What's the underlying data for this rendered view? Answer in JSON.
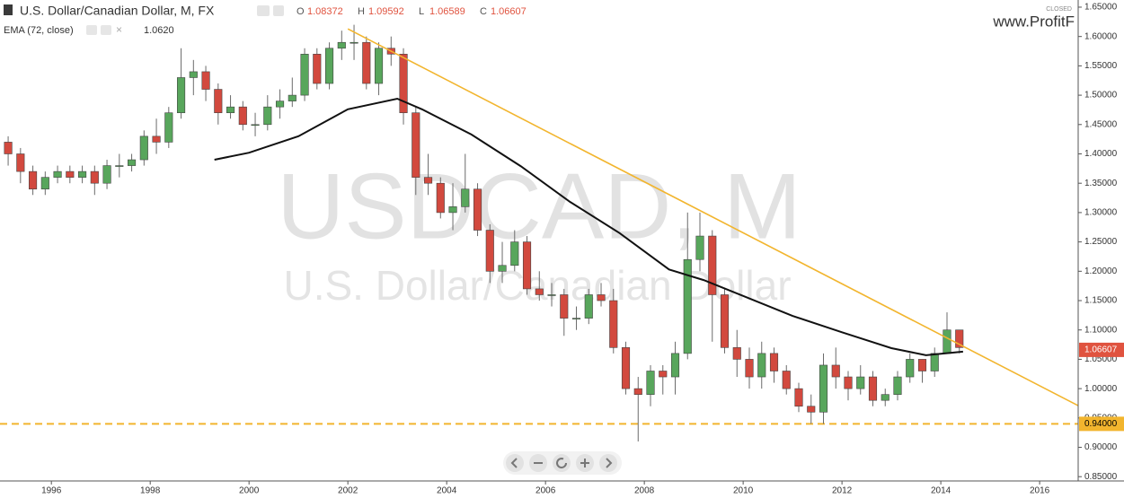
{
  "chart_data": {
    "type": "candlestick",
    "title": "U.S. Dollar/Canadian Dollar, M, FX",
    "watermark": "USDCAD, M",
    "watermark_subtitle": "U.S. Dollar/Canadian Dollar",
    "brand": "www.ProfitF",
    "status": "CLOSED",
    "ohlc_header": [
      {
        "label": "O",
        "value": 1.08372
      },
      {
        "label": "H",
        "value": 1.09592
      },
      {
        "label": "L",
        "value": 1.06589
      },
      {
        "label": "C",
        "value": 1.06607
      }
    ],
    "x": [
      1995.125,
      1995.375,
      1995.625,
      1995.875,
      1996.125,
      1996.375,
      1996.625,
      1996.875,
      1997.125,
      1997.375,
      1997.625,
      1997.875,
      1998.125,
      1998.375,
      1998.625,
      1998.875,
      1999.125,
      1999.375,
      1999.625,
      1999.875,
      2000.125,
      2000.375,
      2000.625,
      2000.875,
      2001.125,
      2001.375,
      2001.625,
      2001.875,
      2002.125,
      2002.375,
      2002.625,
      2002.875,
      2003.125,
      2003.375,
      2003.625,
      2003.875,
      2004.125,
      2004.375,
      2004.625,
      2004.875,
      2005.125,
      2005.375,
      2005.625,
      2005.875,
      2006.125,
      2006.375,
      2006.625,
      2006.875,
      2007.125,
      2007.375,
      2007.625,
      2007.875,
      2008.125,
      2008.375,
      2008.625,
      2008.875,
      2009.125,
      2009.375,
      2009.625,
      2009.875,
      2010.125,
      2010.375,
      2010.625,
      2010.875,
      2011.125,
      2011.375,
      2011.625,
      2011.875,
      2012.125,
      2012.375,
      2012.625,
      2012.875,
      2013.125,
      2013.375,
      2013.625,
      2013.875,
      2014.125,
      2014.375
    ],
    "open": [
      1.42,
      1.4,
      1.37,
      1.34,
      1.36,
      1.37,
      1.36,
      1.37,
      1.35,
      1.38,
      1.38,
      1.39,
      1.43,
      1.42,
      1.47,
      1.53,
      1.54,
      1.51,
      1.47,
      1.48,
      1.45,
      1.45,
      1.48,
      1.49,
      1.5,
      1.57,
      1.52,
      1.58,
      1.59,
      1.59,
      1.52,
      1.58,
      1.57,
      1.47,
      1.36,
      1.35,
      1.3,
      1.31,
      1.34,
      1.27,
      1.2,
      1.21,
      1.25,
      1.17,
      1.16,
      1.16,
      1.12,
      1.12,
      1.16,
      1.15,
      1.07,
      1.0,
      0.99,
      1.03,
      1.02,
      1.06,
      1.22,
      1.26,
      1.16,
      1.07,
      1.05,
      1.02,
      1.06,
      1.03,
      1.0,
      0.97,
      0.96,
      1.04,
      1.02,
      1.0,
      1.02,
      0.98,
      0.99,
      1.02,
      1.05,
      1.03,
      1.06,
      1.1
    ],
    "high": [
      1.43,
      1.41,
      1.38,
      1.37,
      1.38,
      1.38,
      1.38,
      1.38,
      1.39,
      1.4,
      1.4,
      1.44,
      1.46,
      1.48,
      1.58,
      1.56,
      1.55,
      1.52,
      1.5,
      1.49,
      1.47,
      1.5,
      1.51,
      1.53,
      1.58,
      1.58,
      1.59,
      1.61,
      1.62,
      1.6,
      1.59,
      1.6,
      1.58,
      1.48,
      1.4,
      1.36,
      1.35,
      1.4,
      1.35,
      1.28,
      1.25,
      1.27,
      1.26,
      1.2,
      1.18,
      1.17,
      1.14,
      1.17,
      1.18,
      1.17,
      1.08,
      1.02,
      1.04,
      1.04,
      1.08,
      1.3,
      1.3,
      1.27,
      1.17,
      1.1,
      1.07,
      1.08,
      1.07,
      1.04,
      1.01,
      0.99,
      1.06,
      1.07,
      1.03,
      1.04,
      1.03,
      1.0,
      1.03,
      1.06,
      1.05,
      1.07,
      1.13,
      1.1
    ],
    "low": [
      1.38,
      1.35,
      1.33,
      1.33,
      1.35,
      1.35,
      1.35,
      1.33,
      1.34,
      1.36,
      1.37,
      1.38,
      1.4,
      1.41,
      1.46,
      1.5,
      1.49,
      1.45,
      1.46,
      1.44,
      1.43,
      1.44,
      1.46,
      1.48,
      1.49,
      1.51,
      1.51,
      1.56,
      1.56,
      1.51,
      1.5,
      1.55,
      1.45,
      1.33,
      1.33,
      1.29,
      1.27,
      1.3,
      1.26,
      1.18,
      1.18,
      1.2,
      1.16,
      1.15,
      1.14,
      1.09,
      1.1,
      1.11,
      1.14,
      1.06,
      0.99,
      0.91,
      0.97,
      0.99,
      0.99,
      1.05,
      1.2,
      1.08,
      1.06,
      1.02,
      1.0,
      1.0,
      1.01,
      0.99,
      0.96,
      0.94,
      0.94,
      1.0,
      0.98,
      0.99,
      0.97,
      0.97,
      0.98,
      1.01,
      1.01,
      1.02,
      1.06,
      1.06
    ],
    "close": [
      1.4,
      1.37,
      1.34,
      1.36,
      1.37,
      1.36,
      1.37,
      1.35,
      1.38,
      1.38,
      1.39,
      1.43,
      1.42,
      1.47,
      1.53,
      1.54,
      1.51,
      1.47,
      1.48,
      1.45,
      1.45,
      1.48,
      1.49,
      1.5,
      1.57,
      1.52,
      1.58,
      1.59,
      1.59,
      1.52,
      1.58,
      1.57,
      1.47,
      1.36,
      1.35,
      1.3,
      1.31,
      1.34,
      1.27,
      1.2,
      1.21,
      1.25,
      1.17,
      1.16,
      1.16,
      1.12,
      1.12,
      1.16,
      1.15,
      1.07,
      1.0,
      0.99,
      1.03,
      1.02,
      1.06,
      1.22,
      1.26,
      1.16,
      1.07,
      1.05,
      1.02,
      1.06,
      1.03,
      1.0,
      0.97,
      0.96,
      1.04,
      1.02,
      1.0,
      1.02,
      0.98,
      0.99,
      1.02,
      1.05,
      1.03,
      1.06,
      1.1,
      1.07
    ],
    "up_color": "#58a65c",
    "down_color": "#d2493e",
    "wick_color": "#6b6b6b",
    "ema": {
      "name": "EMA (72, close)",
      "value_label": "1.0620",
      "color": "#111111",
      "x": [
        1999.3,
        2000,
        2001,
        2002,
        2003,
        2003.5,
        2004.5,
        2005.5,
        2006.5,
        2007.5,
        2008.5,
        2009.2,
        2010,
        2011,
        2012,
        2013,
        2013.7,
        2014.45
      ],
      "values": [
        1.39,
        1.402,
        1.43,
        1.476,
        1.494,
        1.476,
        1.433,
        1.379,
        1.318,
        1.265,
        1.203,
        1.185,
        1.158,
        1.124,
        1.096,
        1.069,
        1.057,
        1.063
      ]
    },
    "trendline": {
      "x": [
        2002,
        2016.78
      ],
      "values": [
        1.613,
        0.971
      ],
      "color": "#f2b52e"
    },
    "level": {
      "value": 0.94,
      "label": "0.94000",
      "color": "#f2b52e"
    },
    "last_price": {
      "value": 1.06607,
      "color": "#e0533f"
    },
    "xlim": [
      1994.96,
      2016.78
    ],
    "ylim": [
      0.8427,
      1.6622
    ],
    "xticks": [
      1996,
      1998,
      2000,
      2002,
      2004,
      2006,
      2008,
      2010,
      2012,
      2014,
      2016
    ],
    "yticks": [
      {
        "value": 0.85,
        "label": "0.85000"
      },
      {
        "value": 0.9,
        "label": "0.90000"
      },
      {
        "value": 0.95,
        "label": "0.95000"
      },
      {
        "value": 1.0,
        "label": "1.00000"
      },
      {
        "value": 1.05,
        "label": "1.05000"
      },
      {
        "value": 1.1,
        "label": "1.10000"
      },
      {
        "value": 1.15,
        "label": "1.15000"
      },
      {
        "value": 1.2,
        "label": "1.20000"
      },
      {
        "value": 1.25,
        "label": "1.25000"
      },
      {
        "value": 1.3,
        "label": "1.30000"
      },
      {
        "value": 1.35,
        "label": "1.35000"
      },
      {
        "value": 1.4,
        "label": "1.40000"
      },
      {
        "value": 1.45,
        "label": "1.45000"
      },
      {
        "value": 1.5,
        "label": "1.50000"
      },
      {
        "value": 1.55,
        "label": "1.55000"
      },
      {
        "value": 1.6,
        "label": "1.60000"
      },
      {
        "value": 1.65,
        "label": "1.65000"
      }
    ]
  }
}
